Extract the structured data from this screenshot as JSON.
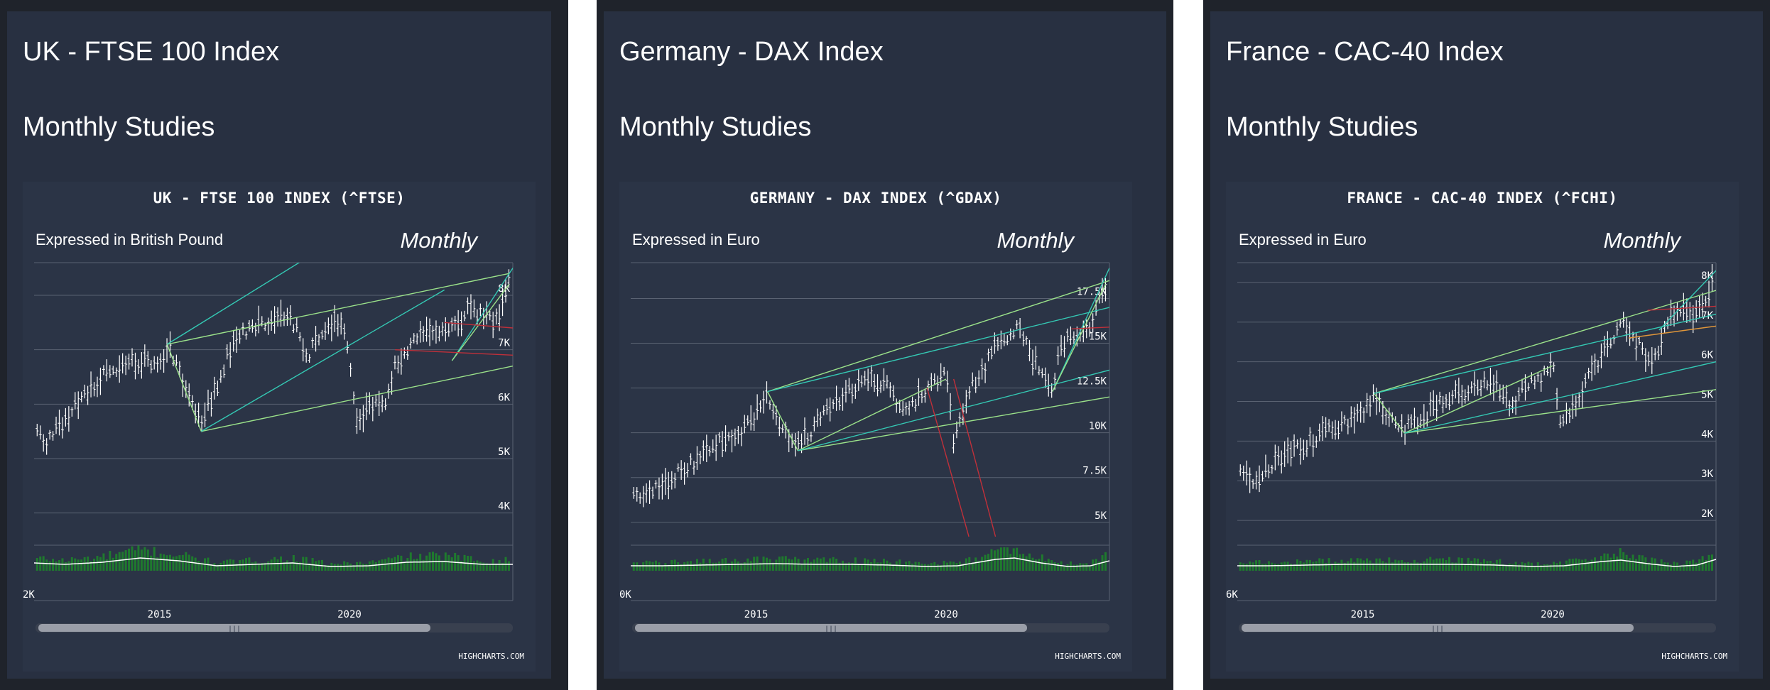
{
  "panels": [
    {
      "id": "uk",
      "title": "UK - FTSE 100 Index",
      "subtitle": "Monthly Studies",
      "chart_title": "UK - FTSE 100 INDEX (^FTSE)",
      "expressed_in": "Expressed in British Pound",
      "period_label": "Monthly",
      "credit": "HIGHCHARTS.COM",
      "colors": {
        "background": "#1f232b",
        "card": "#283041",
        "plot": "#2b3446",
        "bar": "#ffffff",
        "trend_green": "#9be28a",
        "trend_teal": "#34c9b4",
        "trend_red": "#c0303a",
        "volume_up": "#1f7a2e",
        "volume_down": "#b3202a"
      }
    },
    {
      "id": "germany",
      "title": "Germany - DAX Index",
      "subtitle": "Monthly Studies",
      "chart_title": "GERMANY - DAX INDEX (^GDAX)",
      "expressed_in": "Expressed in Euro",
      "period_label": "Monthly",
      "credit": "HIGHCHARTS.COM",
      "colors": {
        "background": "#1f232b",
        "card": "#283041",
        "plot": "#2b3446",
        "bar": "#ffffff",
        "trend_green": "#9be28a",
        "trend_teal": "#34c9b4",
        "trend_red": "#c0303a",
        "volume_up": "#1f7a2e",
        "volume_down": "#b3202a"
      }
    },
    {
      "id": "france",
      "title": "France - CAC-40 Index",
      "subtitle": "Monthly Studies",
      "chart_title": "FRANCE - CAC-40 INDEX (^FCHI)",
      "expressed_in": "Expressed in Euro",
      "period_label": "Monthly",
      "credit": "HIGHCHARTS.COM",
      "colors": {
        "background": "#1f232b",
        "card": "#283041",
        "plot": "#2b3446",
        "bar": "#ffffff",
        "trend_green": "#9be28a",
        "trend_teal": "#34c9b4",
        "trend_red": "#c0303a",
        "volume_up": "#1f7a2e",
        "volume_down": "#b3202a"
      }
    }
  ],
  "chart_data": [
    {
      "type": "ohlc",
      "title": "UK - FTSE 100 INDEX (^FTSE)",
      "xlim": [
        2011.7,
        2024.3
      ],
      "x_ticks": [
        "2015",
        "2020"
      ],
      "ylim": [
        3500,
        8600
      ],
      "y_ticks": [
        {
          "value": 4000,
          "label": "4K"
        },
        {
          "value": 5000,
          "label": "5K"
        },
        {
          "value": 6000,
          "label": "6K"
        },
        {
          "value": 7000,
          "label": "7K"
        },
        {
          "value": 8000,
          "label": "8K"
        }
      ],
      "volume_axis_label": "2K",
      "anchors": [
        [
          2011.75,
          5500
        ],
        [
          2012.0,
          5300
        ],
        [
          2012.5,
          5700
        ],
        [
          2013.0,
          6200
        ],
        [
          2013.5,
          6500
        ],
        [
          2014.0,
          6700
        ],
        [
          2014.5,
          6800
        ],
        [
          2015.0,
          6700
        ],
        [
          2015.3,
          7000
        ],
        [
          2015.7,
          6200
        ],
        [
          2016.1,
          5700
        ],
        [
          2016.5,
          6300
        ],
        [
          2016.8,
          6900
        ],
        [
          2017.0,
          7200
        ],
        [
          2017.5,
          7400
        ],
        [
          2018.0,
          7600
        ],
        [
          2018.4,
          7700
        ],
        [
          2018.9,
          6900
        ],
        [
          2019.2,
          7200
        ],
        [
          2019.5,
          7500
        ],
        [
          2019.9,
          7400
        ],
        [
          2020.2,
          5600
        ],
        [
          2020.6,
          6000
        ],
        [
          2020.9,
          6000
        ],
        [
          2021.2,
          6700
        ],
        [
          2021.5,
          7000
        ],
        [
          2021.8,
          7200
        ],
        [
          2022.2,
          7400
        ],
        [
          2022.6,
          7300
        ],
        [
          2022.9,
          7500
        ],
        [
          2023.2,
          7800
        ],
        [
          2023.6,
          7600
        ],
        [
          2023.9,
          7500
        ],
        [
          2024.2,
          8300
        ]
      ],
      "trendlines": [
        {
          "color": "trend_green",
          "points": [
            [
              2015.2,
              7100
            ],
            [
              2024.2,
              8400
            ]
          ]
        },
        {
          "color": "trend_green",
          "points": [
            [
              2016.1,
              5500
            ],
            [
              2024.3,
              6700
            ]
          ]
        },
        {
          "color": "trend_green",
          "points": [
            [
              2015.2,
              7100
            ],
            [
              2016.1,
              5500
            ]
          ]
        },
        {
          "color": "trend_teal",
          "points": [
            [
              2015.2,
              7100
            ],
            [
              2019.6,
              9000
            ]
          ]
        },
        {
          "color": "trend_teal",
          "points": [
            [
              2016.1,
              5500
            ],
            [
              2022.5,
              8100
            ]
          ]
        },
        {
          "color": "trend_teal",
          "points": [
            [
              2022.7,
              6800
            ],
            [
              2024.3,
              8500
            ]
          ]
        },
        {
          "color": "trend_green",
          "points": [
            [
              2022.7,
              6800
            ],
            [
              2024.2,
              8200
            ]
          ]
        },
        {
          "color": "trend_red",
          "points": [
            [
              2021.2,
              7000
            ],
            [
              2024.3,
              6900
            ]
          ]
        },
        {
          "color": "trend_red",
          "points": [
            [
              2022.5,
              7500
            ],
            [
              2024.3,
              7400
            ]
          ]
        }
      ],
      "oscillator": [
        [
          2011.7,
          0.55
        ],
        [
          2012.5,
          0.45
        ],
        [
          2013.5,
          0.6
        ],
        [
          2014.5,
          0.9
        ],
        [
          2015.5,
          0.7
        ],
        [
          2016.5,
          0.35
        ],
        [
          2017.5,
          0.45
        ],
        [
          2018.5,
          0.55
        ],
        [
          2019.5,
          0.3
        ],
        [
          2020.5,
          0.35
        ],
        [
          2021.5,
          0.6
        ],
        [
          2022.5,
          0.65
        ],
        [
          2023.5,
          0.45
        ],
        [
          2024.3,
          0.45
        ]
      ]
    },
    {
      "type": "ohlc",
      "title": "GERMANY - DAX INDEX (^GDAX)",
      "xlim": [
        2011.7,
        2024.3
      ],
      "x_ticks": [
        "2015",
        "2020"
      ],
      "ylim": [
        4000,
        19500
      ],
      "y_ticks": [
        {
          "value": 5000,
          "label": "5K"
        },
        {
          "value": 7500,
          "label": "7.5K"
        },
        {
          "value": 10000,
          "label": "10K"
        },
        {
          "value": 12500,
          "label": "12.5K"
        },
        {
          "value": 15000,
          "label": "15K"
        },
        {
          "value": 17500,
          "label": "17.5K"
        }
      ],
      "volume_axis_label": "0K",
      "anchors": [
        [
          2011.75,
          6500
        ],
        [
          2012.0,
          6200
        ],
        [
          2012.5,
          7000
        ],
        [
          2013.0,
          7800
        ],
        [
          2013.5,
          8500
        ],
        [
          2014.0,
          9500
        ],
        [
          2014.5,
          9800
        ],
        [
          2015.0,
          11000
        ],
        [
          2015.3,
          12000
        ],
        [
          2015.7,
          10000
        ],
        [
          2016.1,
          9500
        ],
        [
          2016.5,
          10200
        ],
        [
          2017.0,
          11500
        ],
        [
          2017.5,
          12500
        ],
        [
          2018.0,
          13000
        ],
        [
          2018.5,
          12500
        ],
        [
          2018.9,
          11000
        ],
        [
          2019.3,
          12000
        ],
        [
          2019.7,
          12800
        ],
        [
          2020.0,
          13300
        ],
        [
          2020.2,
          9500
        ],
        [
          2020.6,
          12500
        ],
        [
          2020.9,
          13000
        ],
        [
          2021.2,
          14500
        ],
        [
          2021.6,
          15500
        ],
        [
          2021.9,
          15800
        ],
        [
          2022.2,
          14500
        ],
        [
          2022.6,
          13000
        ],
        [
          2022.8,
          12500
        ],
        [
          2023.0,
          14500
        ],
        [
          2023.3,
          15500
        ],
        [
          2023.7,
          15500
        ],
        [
          2023.9,
          16500
        ],
        [
          2024.2,
          18200
        ]
      ],
      "trendlines": [
        {
          "color": "trend_green",
          "points": [
            [
              2015.3,
              12300
            ],
            [
              2024.3,
              18500
            ]
          ]
        },
        {
          "color": "trend_green",
          "points": [
            [
              2016.1,
              9000
            ],
            [
              2024.3,
              12000
            ]
          ]
        },
        {
          "color": "trend_green",
          "points": [
            [
              2015.3,
              12300
            ],
            [
              2016.1,
              9000
            ]
          ]
        },
        {
          "color": "trend_green",
          "points": [
            [
              2016.1,
              9000
            ],
            [
              2020.0,
              13000
            ]
          ]
        },
        {
          "color": "trend_teal",
          "points": [
            [
              2015.3,
              12300
            ],
            [
              2024.3,
              17000
            ]
          ]
        },
        {
          "color": "trend_teal",
          "points": [
            [
              2016.1,
              9000
            ],
            [
              2024.3,
              13500
            ]
          ]
        },
        {
          "color": "trend_teal",
          "points": [
            [
              2022.8,
              12300
            ],
            [
              2024.3,
              19200
            ]
          ]
        },
        {
          "color": "trend_green",
          "points": [
            [
              2022.8,
              12300
            ],
            [
              2024.2,
              18300
            ]
          ]
        },
        {
          "color": "trend_red",
          "points": [
            [
              2019.5,
              12500
            ],
            [
              2020.6,
              4200
            ]
          ]
        },
        {
          "color": "trend_red",
          "points": [
            [
              2020.2,
              13000
            ],
            [
              2021.3,
              4200
            ]
          ]
        },
        {
          "color": "trend_red",
          "points": [
            [
              2023.3,
              15800
            ],
            [
              2024.3,
              15900
            ]
          ]
        }
      ],
      "oscillator": [
        [
          2011.7,
          0.35
        ],
        [
          2012.5,
          0.35
        ],
        [
          2013.5,
          0.4
        ],
        [
          2014.5,
          0.45
        ],
        [
          2015.5,
          0.5
        ],
        [
          2016.5,
          0.45
        ],
        [
          2017.5,
          0.45
        ],
        [
          2018.5,
          0.4
        ],
        [
          2019.5,
          0.3
        ],
        [
          2020.3,
          0.35
        ],
        [
          2021.3,
          0.8
        ],
        [
          2021.8,
          0.9
        ],
        [
          2022.5,
          0.55
        ],
        [
          2023.2,
          0.3
        ],
        [
          2023.8,
          0.35
        ],
        [
          2024.3,
          0.7
        ]
      ]
    },
    {
      "type": "ohlc",
      "title": "FRANCE - CAC-40 INDEX (^FCHI)",
      "xlim": [
        2011.7,
        2024.3
      ],
      "x_ticks": [
        "2015",
        "2020"
      ],
      "ylim": [
        1500,
        8500
      ],
      "y_ticks": [
        {
          "value": 2000,
          "label": "2K"
        },
        {
          "value": 3000,
          "label": "3K"
        },
        {
          "value": 4000,
          "label": "4K"
        },
        {
          "value": 5000,
          "label": "5K"
        },
        {
          "value": 6000,
          "label": "6K"
        },
        {
          "value": 7000,
          "label": "7K"
        },
        {
          "value": 8000,
          "label": "8K"
        }
      ],
      "volume_axis_label": "6K",
      "anchors": [
        [
          2011.75,
          3200
        ],
        [
          2012.0,
          3000
        ],
        [
          2012.5,
          3300
        ],
        [
          2013.0,
          3700
        ],
        [
          2013.5,
          3900
        ],
        [
          2014.0,
          4200
        ],
        [
          2014.5,
          4400
        ],
        [
          2015.0,
          4700
        ],
        [
          2015.3,
          5100
        ],
        [
          2015.7,
          4500
        ],
        [
          2016.1,
          4300
        ],
        [
          2016.5,
          4500
        ],
        [
          2017.0,
          5000
        ],
        [
          2017.5,
          5200
        ],
        [
          2018.0,
          5400
        ],
        [
          2018.5,
          5400
        ],
        [
          2018.9,
          4800
        ],
        [
          2019.3,
          5400
        ],
        [
          2019.7,
          5600
        ],
        [
          2020.0,
          6000
        ],
        [
          2020.2,
          4400
        ],
        [
          2020.6,
          5000
        ],
        [
          2020.9,
          5500
        ],
        [
          2021.2,
          6000
        ],
        [
          2021.6,
          6600
        ],
        [
          2021.9,
          7000
        ],
        [
          2022.2,
          6500
        ],
        [
          2022.6,
          6000
        ],
        [
          2022.8,
          6200
        ],
        [
          2023.0,
          7000
        ],
        [
          2023.3,
          7300
        ],
        [
          2023.7,
          7200
        ],
        [
          2023.9,
          7400
        ],
        [
          2024.2,
          8000
        ]
      ],
      "trendlines": [
        {
          "color": "trend_green",
          "points": [
            [
              2015.3,
              5200
            ],
            [
              2024.3,
              7800
            ]
          ]
        },
        {
          "color": "trend_green",
          "points": [
            [
              2016.1,
              4200
            ],
            [
              2024.3,
              5300
            ]
          ]
        },
        {
          "color": "trend_green",
          "points": [
            [
              2015.3,
              5200
            ],
            [
              2016.1,
              4200
            ]
          ]
        },
        {
          "color": "trend_green",
          "points": [
            [
              2016.1,
              4200
            ],
            [
              2020.0,
              5900
            ]
          ]
        },
        {
          "color": "trend_teal",
          "points": [
            [
              2015.3,
              5200
            ],
            [
              2024.3,
              7200
            ]
          ]
        },
        {
          "color": "trend_teal",
          "points": [
            [
              2016.1,
              4200
            ],
            [
              2024.3,
              6000
            ]
          ]
        },
        {
          "color": "trend_teal",
          "points": [
            [
              2022.8,
              6800
            ],
            [
              2024.3,
              8300
            ]
          ]
        },
        {
          "color": "trend_orange",
          "points": [
            [
              2022.0,
              6600
            ],
            [
              2024.3,
              6900
            ]
          ]
        },
        {
          "color": "trend_red",
          "points": [
            [
              2022.5,
              7300
            ],
            [
              2024.3,
              7400
            ]
          ]
        }
      ],
      "oscillator": [
        [
          2011.7,
          0.35
        ],
        [
          2012.5,
          0.35
        ],
        [
          2013.5,
          0.4
        ],
        [
          2014.5,
          0.45
        ],
        [
          2015.5,
          0.45
        ],
        [
          2016.5,
          0.45
        ],
        [
          2017.5,
          0.45
        ],
        [
          2018.5,
          0.4
        ],
        [
          2019.5,
          0.3
        ],
        [
          2020.3,
          0.35
        ],
        [
          2021.3,
          0.65
        ],
        [
          2021.8,
          0.75
        ],
        [
          2022.5,
          0.5
        ],
        [
          2023.2,
          0.3
        ],
        [
          2023.8,
          0.4
        ],
        [
          2024.3,
          0.8
        ]
      ]
    }
  ]
}
